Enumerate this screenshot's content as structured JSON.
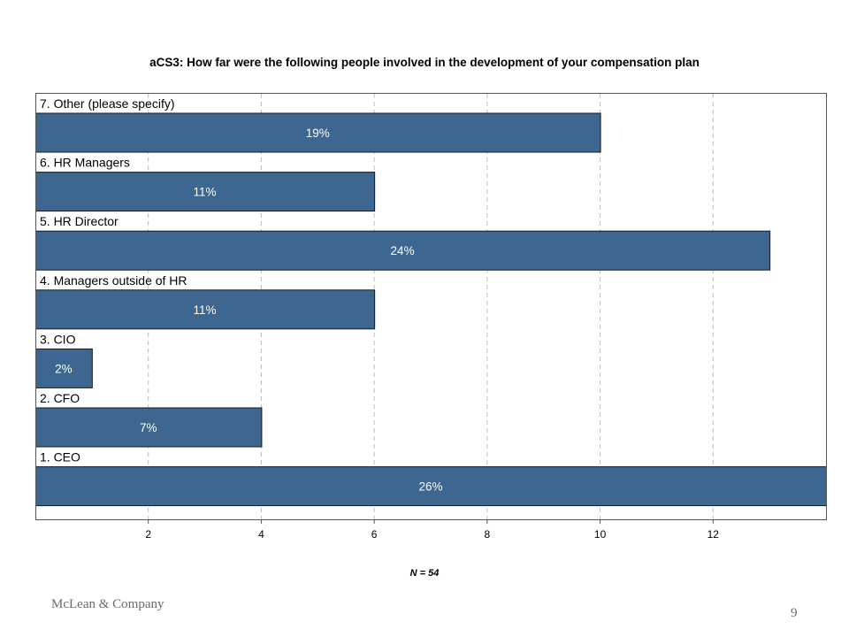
{
  "chart_data": {
    "type": "bar",
    "orientation": "horizontal",
    "title": "aCS3: How far were the following people involved in the development of your compensation plan",
    "categories": [
      "7. Other (please specify)",
      "6. HR Managers",
      "5. HR Director",
      "4. Managers outside of HR",
      "3. CIO",
      "2. CFO",
      "1. CEO"
    ],
    "values": [
      10,
      6,
      13,
      6,
      1,
      4,
      14
    ],
    "data_labels": [
      "19%",
      "11%",
      "24%",
      "11%",
      "2%",
      "7%",
      "26%"
    ],
    "xlim": [
      0,
      14
    ],
    "xticks": [
      2,
      4,
      6,
      8,
      10,
      12
    ],
    "grid": "vertical dashed",
    "bar_color": "#3d6690",
    "note": "N = 54"
  },
  "footer": {
    "company": "McLean & Company",
    "page": "9"
  }
}
